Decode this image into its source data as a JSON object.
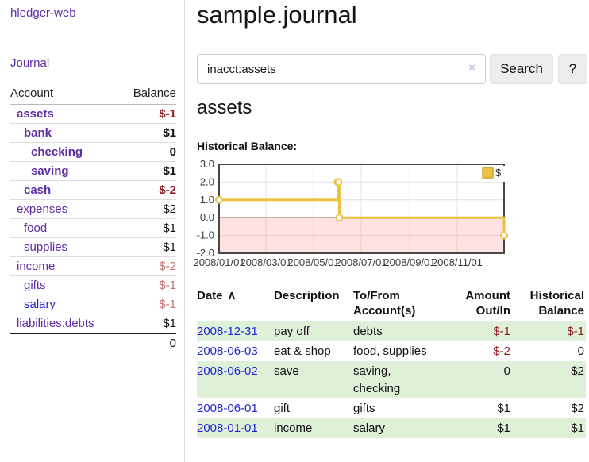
{
  "sidebar": {
    "brand": "hledger-web",
    "journal_link": "Journal",
    "accounts_table": {
      "account_header": "Account",
      "balance_header": "Balance",
      "rows": [
        {
          "name": "assets",
          "balance": "$-1",
          "indent": 0,
          "bold": true
        },
        {
          "name": "bank",
          "balance": "$1",
          "indent": 1,
          "bold": true
        },
        {
          "name": "checking",
          "balance": "0",
          "indent": 2,
          "bold": true
        },
        {
          "name": "saving",
          "balance": "$1",
          "indent": 2,
          "bold": true
        },
        {
          "name": "cash",
          "balance": "$-2",
          "indent": 1,
          "bold": true
        },
        {
          "name": "expenses",
          "balance": "$2",
          "indent": 0,
          "bold": false
        },
        {
          "name": "food",
          "balance": "$1",
          "indent": 1,
          "bold": false
        },
        {
          "name": "supplies",
          "balance": "$1",
          "indent": 1,
          "bold": false
        },
        {
          "name": "income",
          "balance": "$-2",
          "indent": 0,
          "bold": false
        },
        {
          "name": "gifts",
          "balance": "$-1",
          "indent": 1,
          "bold": false
        },
        {
          "name": "salary",
          "balance": "$-1",
          "indent": 1,
          "bold": false,
          "link_color": "blue"
        },
        {
          "name": "liabilities:debts",
          "balance": "$1",
          "indent": 0,
          "bold": false
        }
      ],
      "total": "0"
    }
  },
  "main": {
    "title": "sample.journal",
    "search": {
      "value": "inacct:assets",
      "clear_icon": "×",
      "search_button": "Search",
      "help_button": "?"
    },
    "account_heading": "assets",
    "chart_label": "Historical Balance:"
  },
  "chart_data": {
    "type": "line",
    "step": true,
    "title": "Historical Balance:",
    "series": [
      {
        "name": "$",
        "color": "#EDC240",
        "points": [
          [
            "2008-01-01",
            1
          ],
          [
            "2008-06-01",
            2
          ],
          [
            "2008-06-02",
            2
          ],
          [
            "2008-06-03",
            0
          ],
          [
            "2008-12-31",
            -1
          ]
        ]
      }
    ],
    "xlim": [
      "2008-01-01",
      "2008-12-31"
    ],
    "ylim": [
      -2,
      3
    ],
    "x_tick_labels": [
      "2008/01/01",
      "2008/03/01",
      "2008/05/01",
      "2008/07/01",
      "2008/09/01",
      "2008/11/01"
    ],
    "y_tick_labels": [
      "3.0",
      "2.0",
      "1.0",
      "0.0",
      "-1.0",
      "-2.0"
    ],
    "grid": true,
    "legend_position": "top-right",
    "negative_region": true
  },
  "register": {
    "columns": [
      {
        "label": "Date",
        "sort_indicator": "∧",
        "align": "left"
      },
      {
        "label": "Description",
        "align": "left"
      },
      {
        "label": "To/From Account(s)",
        "align": "left"
      },
      {
        "label": "Amount Out/In",
        "align": "right"
      },
      {
        "label": "Historical Balance",
        "align": "right"
      }
    ],
    "rows": [
      {
        "date": "2008-12-31",
        "description": "pay off",
        "accounts": "debts",
        "amount": "$-1",
        "balance": "$-1"
      },
      {
        "date": "2008-06-03",
        "description": "eat & shop",
        "accounts": "food, supplies",
        "amount": "$-2",
        "balance": "0"
      },
      {
        "date": "2008-06-02",
        "description": "save",
        "accounts": "saving, checking",
        "amount": "0",
        "balance": "$2"
      },
      {
        "date": "2008-06-01",
        "description": "gift",
        "accounts": "gifts",
        "amount": "$1",
        "balance": "$2"
      },
      {
        "date": "2008-01-01",
        "description": "income",
        "accounts": "salary",
        "amount": "$1",
        "balance": "$1"
      }
    ]
  },
  "colors": {
    "link_purple": "#5e2ca5",
    "link_blue": "#2424d6",
    "negative_strong": "#8f1d21",
    "negative_soft": "#c46f6f",
    "row_green": "#dff0d8",
    "chart_gold": "#EDC240",
    "zero_line": "#8b1a1a",
    "plot_border": "#474747",
    "gridline": "#e4e4e4"
  }
}
